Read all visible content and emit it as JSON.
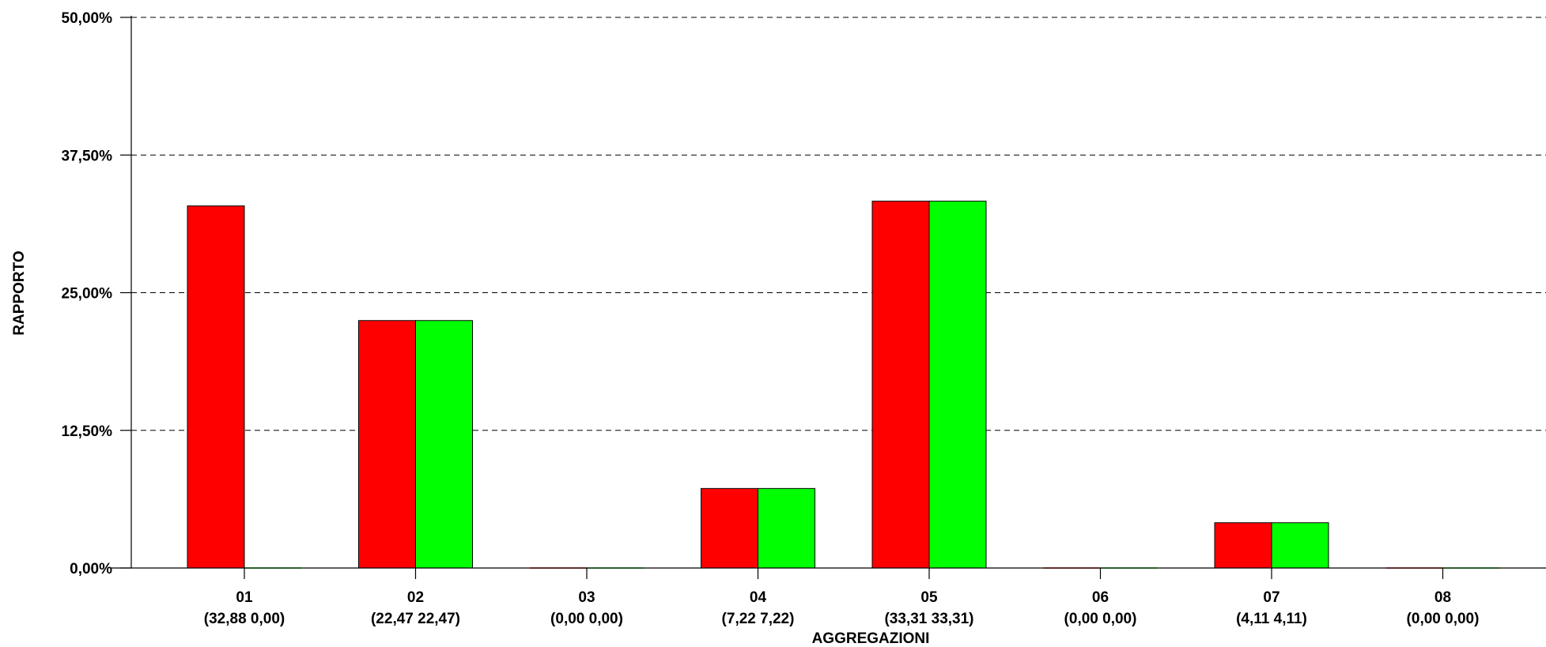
{
  "chart_data": {
    "type": "bar",
    "xlabel": "AGGREGAZIONI",
    "ylabel": "RAPPORTO",
    "ylim": [
      0,
      50
    ],
    "yticks": [
      0,
      12.5,
      25,
      37.5,
      50
    ],
    "ytick_labels": [
      "0,00%",
      "12,50%",
      "25,00%",
      "37,50%",
      "50,00%"
    ],
    "grid": "horizontal dashed",
    "legend": "none",
    "categories": [
      "01",
      "02",
      "03",
      "04",
      "05",
      "06",
      "07",
      "08"
    ],
    "category_sublabels": [
      "(32,88  0,00)",
      "(22,47  22,47)",
      "(0,00  0,00)",
      "(7,22  7,22)",
      "(33,31  33,31)",
      "(0,00  0,00)",
      "(4,11  4,11)",
      "(0,00  0,00)"
    ],
    "series": [
      {
        "values": [
          32.88,
          22.47,
          0,
          7.22,
          33.31,
          0,
          4.11,
          0
        ],
        "color": "#ff0000"
      },
      {
        "values": [
          0,
          22.47,
          0,
          7.22,
          33.31,
          0,
          4.11,
          0
        ],
        "color": "#00ff00"
      }
    ]
  }
}
